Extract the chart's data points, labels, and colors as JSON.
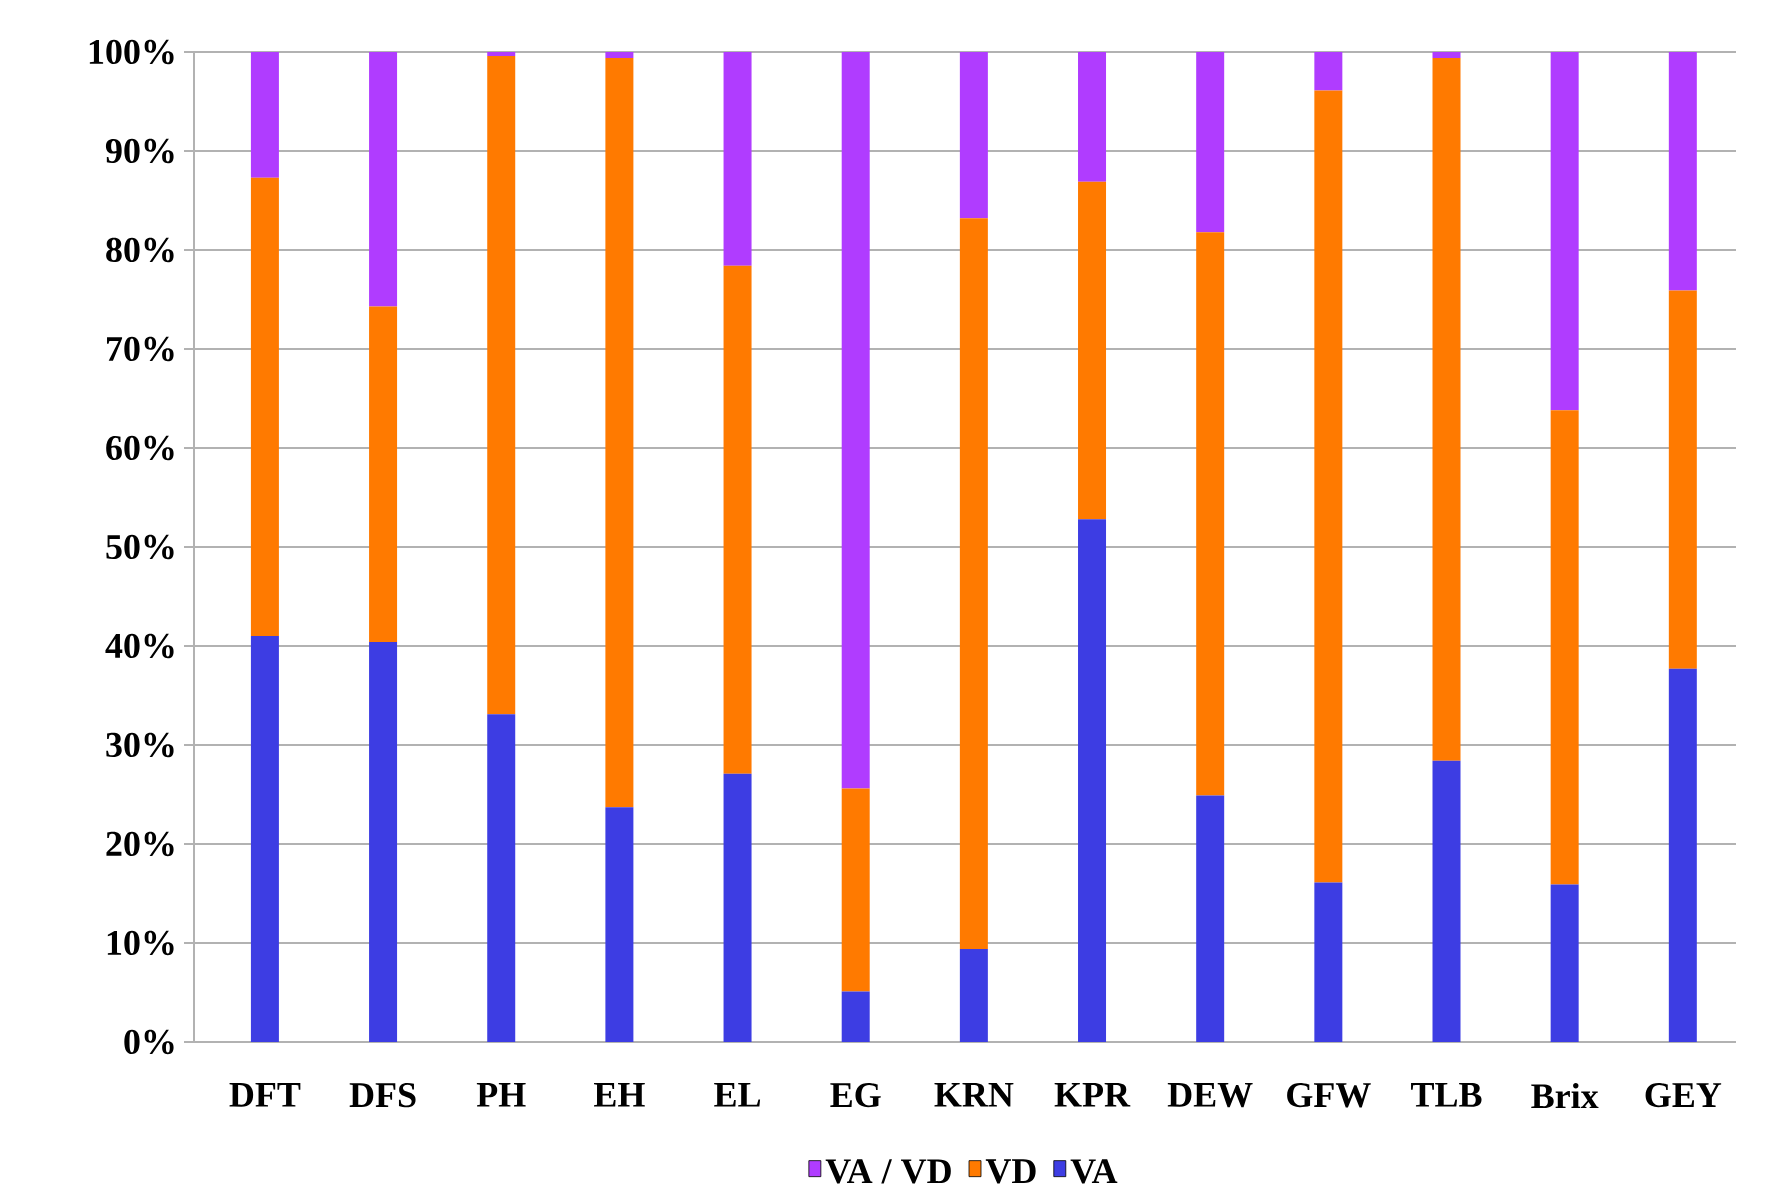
{
  "chart_data": {
    "type": "bar",
    "stacked": true,
    "categories": [
      "DFT",
      "DFS",
      "PH",
      "EH",
      "EL",
      "EG",
      "KRN",
      "KPR",
      "DEW",
      "GFW",
      "TLB",
      "Brix",
      "GEY"
    ],
    "series": [
      {
        "name": "VA",
        "color": "#3d3de3",
        "values": [
          41.0,
          40.4,
          33.1,
          23.7,
          27.1,
          5.1,
          9.4,
          52.8,
          24.9,
          16.1,
          28.4,
          15.9,
          37.7
        ]
      },
      {
        "name": "VD",
        "color": "#ff7a00",
        "values": [
          46.3,
          33.9,
          66.5,
          75.7,
          51.3,
          20.5,
          73.8,
          34.1,
          56.9,
          80.0,
          71.0,
          47.9,
          38.2
        ]
      },
      {
        "name": "VA / VD",
        "color": "#b03cff",
        "values": [
          12.7,
          25.7,
          0.4,
          0.6,
          21.6,
          74.4,
          16.8,
          13.1,
          18.2,
          3.9,
          0.6,
          36.2,
          24.1
        ]
      }
    ],
    "ylim": [
      0,
      100
    ],
    "yticks": [
      {
        "value": 0,
        "label": "0%"
      },
      {
        "value": 10,
        "label": "10%"
      },
      {
        "value": 20,
        "label": "20%"
      },
      {
        "value": 30,
        "label": "30%"
      },
      {
        "value": 40,
        "label": "40%"
      },
      {
        "value": 50,
        "label": "50%"
      },
      {
        "value": 60,
        "label": "60%"
      },
      {
        "value": 70,
        "label": "70%"
      },
      {
        "value": 80,
        "label": "80%"
      },
      {
        "value": 90,
        "label": "90%"
      },
      {
        "value": 100,
        "label": "100%"
      }
    ],
    "grid": "y",
    "legend": "bottom"
  }
}
